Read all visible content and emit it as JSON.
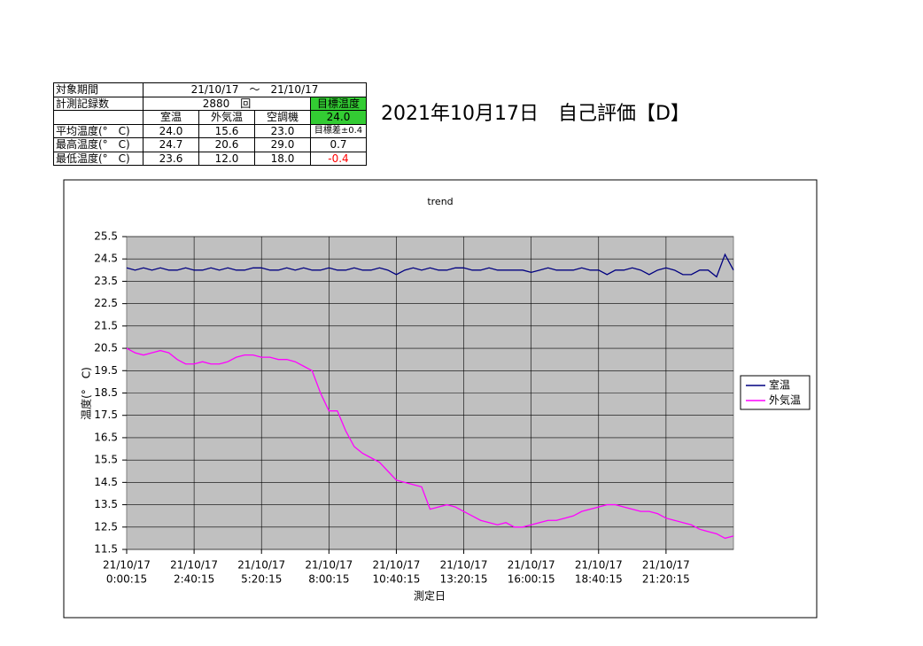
{
  "header": {
    "title": "2021年10月17日　自己評価【D】"
  },
  "table": {
    "rows": [
      [
        "対象期間",
        "21/10/17　～　21/10/17"
      ],
      [
        "計測記録数",
        "2880　回",
        "目標温度"
      ],
      [
        "室温",
        "外気温",
        "空調機",
        "24.0"
      ],
      [
        "平均温度(°　C)",
        "24.0",
        "15.6",
        "23.0",
        "目標差±0.4"
      ],
      [
        "最高温度(°　C)",
        "24.7",
        "20.6",
        "29.0",
        "0.7"
      ],
      [
        "最低温度(°　C)",
        "23.6",
        "12.0",
        "18.0",
        "-0.4"
      ]
    ]
  },
  "chart_data": {
    "type": "line",
    "title": "trend",
    "y_label": "温度(°　C)",
    "x_label": "測定日",
    "x_tick_labels": [
      [
        "21/10/17",
        "0:00:15"
      ],
      [
        "21/10/17",
        "2:40:15"
      ],
      [
        "21/10/17",
        "5:20:15"
      ],
      [
        "21/10/17",
        "8:00:15"
      ],
      [
        "21/10/17",
        "10:40:15"
      ],
      [
        "21/10/17",
        "13:20:15"
      ],
      [
        "21/10/17",
        "16:00:15"
      ],
      [
        "21/10/17",
        "18:40:15"
      ],
      [
        "21/10/17",
        "21:20:15"
      ]
    ],
    "ylim": [
      11.5,
      25.5
    ],
    "yticks": [
      11.5,
      12.5,
      13.5,
      14.5,
      15.5,
      16.5,
      17.5,
      18.5,
      19.5,
      20.5,
      21.5,
      22.5,
      23.5,
      24.5,
      25.5
    ],
    "grid": true,
    "legend": "right",
    "series": [
      {
        "name": "室温",
        "color": "#000080",
        "values": [
          24.1,
          24.0,
          24.1,
          24.0,
          24.1,
          24.0,
          24.0,
          24.1,
          24.0,
          24.0,
          24.1,
          24.0,
          24.1,
          24.0,
          24.0,
          24.1,
          24.1,
          24.0,
          24.0,
          24.1,
          24.0,
          24.1,
          24.0,
          24.0,
          24.1,
          24.0,
          24.0,
          24.1,
          24.0,
          24.0,
          24.1,
          24.0,
          23.8,
          24.0,
          24.1,
          24.0,
          24.1,
          24.0,
          24.0,
          24.1,
          24.1,
          24.0,
          24.0,
          24.1,
          24.0,
          24.0,
          24.0,
          24.0,
          23.9,
          24.0,
          24.1,
          24.0,
          24.0,
          24.0,
          24.1,
          24.0,
          24.0,
          23.8,
          24.0,
          24.0,
          24.1,
          24.0,
          23.8,
          24.0,
          24.1,
          24.0,
          23.8,
          23.8,
          24.0,
          24.0,
          23.7,
          24.7,
          24.0
        ]
      },
      {
        "name": "外気温",
        "color": "#ff00ff",
        "values": [
          20.5,
          20.3,
          20.2,
          20.3,
          20.4,
          20.3,
          20.0,
          19.8,
          19.8,
          19.9,
          19.8,
          19.8,
          19.9,
          20.1,
          20.2,
          20.2,
          20.1,
          20.1,
          20.0,
          20.0,
          19.9,
          19.7,
          19.5,
          18.5,
          17.7,
          17.7,
          16.8,
          16.1,
          15.8,
          15.6,
          15.4,
          15.0,
          14.6,
          14.5,
          14.4,
          14.3,
          13.3,
          13.4,
          13.5,
          13.4,
          13.2,
          13.0,
          12.8,
          12.7,
          12.6,
          12.7,
          12.5,
          12.5,
          12.6,
          12.7,
          12.8,
          12.8,
          12.9,
          13.0,
          13.2,
          13.3,
          13.4,
          13.5,
          13.5,
          13.4,
          13.3,
          13.2,
          13.2,
          13.1,
          12.9,
          12.8,
          12.7,
          12.6,
          12.4,
          12.3,
          12.2,
          12.0,
          12.1
        ]
      }
    ]
  }
}
